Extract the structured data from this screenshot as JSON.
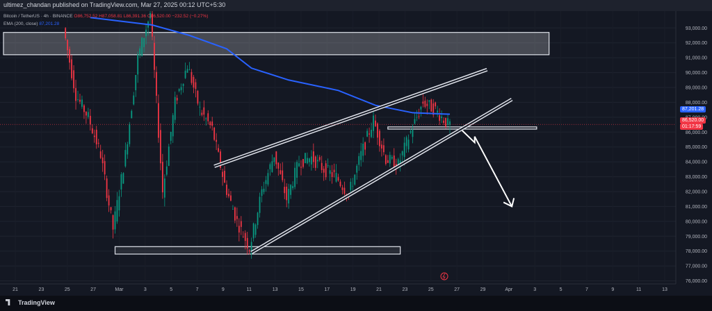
{
  "header": {
    "publish_text": "ultimez_chandan published on TradingView.com, Mar 27, 2025 00:12 UTC+5:30"
  },
  "legend": {
    "symbol": "Bitcoin / TetherUS · 4h · BINANCE",
    "ohlc": "O86,752.52 H87,058.81 L86,391.36 C86,520.00 −232.52 (−0.27%)",
    "ema": "EMA (200, close)",
    "ema_value": "87,201.28"
  },
  "price_tags": {
    "ema": "87,201.28",
    "last": "86,520.00",
    "countdown": "01:17:59"
  },
  "footer": {
    "brand": "TradingView"
  },
  "colors": {
    "up": "#089981",
    "down": "#f23645",
    "ema": "#2962ff",
    "bg": "#141823",
    "zone": "#ffffff"
  },
  "chart_data": {
    "type": "line",
    "y_ticks": [
      "93,000.00",
      "92,000.00",
      "91,000.00",
      "90,000.00",
      "89,000.00",
      "88,000.00",
      "87,000.00",
      "86,000.00",
      "85,000.00",
      "84,000.00",
      "83,000.00",
      "82,000.00",
      "81,000.00",
      "80,000.00",
      "79,000.00",
      "78,000.00",
      "77,000.00",
      "76,000.00"
    ],
    "x_ticks": [
      "21",
      "23",
      "25",
      "27",
      "Mar",
      "3",
      "5",
      "7",
      "9",
      "11",
      "13",
      "15",
      "17",
      "19",
      "21",
      "23",
      "25",
      "27",
      "29",
      "Apr",
      "3",
      "5",
      "7",
      "9",
      "11",
      "13"
    ],
    "ylim": [
      75700,
      93900
    ],
    "x_range": [
      "Feb 19",
      "Apr 14"
    ],
    "price_path": [
      [
        "Feb 19",
        96000
      ],
      [
        "Feb 24",
        93000
      ],
      [
        "Feb 25",
        88500
      ],
      [
        "Feb 26",
        87000
      ],
      [
        "Feb 27",
        84500
      ],
      [
        "Feb 28",
        79500
      ],
      [
        "Mar 1",
        84500
      ],
      [
        "Mar 2",
        91000
      ],
      [
        "Mar 3",
        94000
      ],
      [
        "Mar 4",
        82000
      ],
      [
        "Mar 5",
        88000
      ],
      [
        "Mar 6",
        90500
      ],
      [
        "Mar 7",
        87500
      ],
      [
        "Mar 8",
        86200
      ],
      [
        "Mar 9",
        82500
      ],
      [
        "Mar 10",
        80000
      ],
      [
        "Mar 11",
        78200
      ],
      [
        "Mar 12",
        82000
      ],
      [
        "Mar 13",
        84500
      ],
      [
        "Mar 14",
        81500
      ],
      [
        "Mar 15",
        84000
      ],
      [
        "Mar 16",
        84300
      ],
      [
        "Mar 17",
        83500
      ],
      [
        "Mar 18",
        83000
      ],
      [
        "Mar 19",
        81800
      ],
      [
        "Mar 20",
        84500
      ],
      [
        "Mar 21",
        86800
      ],
      [
        "Mar 22",
        84200
      ],
      [
        "Mar 23",
        83800
      ],
      [
        "Mar 24",
        86000
      ],
      [
        "Mar 25",
        88000
      ],
      [
        "Mar 26",
        87500
      ],
      [
        "Mar 27",
        86520
      ]
    ],
    "ema_200": [
      [
        "Feb 26",
        93700
      ],
      [
        "Mar 3",
        93200
      ],
      [
        "Mar 6",
        92500
      ],
      [
        "Mar 9",
        91600
      ],
      [
        "Mar 11",
        90300
      ],
      [
        "Mar 14",
        89500
      ],
      [
        "Mar 18",
        88800
      ],
      [
        "Mar 21",
        87800
      ],
      [
        "Mar 24",
        87300
      ],
      [
        "Mar 27",
        87201.28
      ]
    ],
    "annotations": {
      "resistance_zone": {
        "from": "Feb 19",
        "to": "Apr 4",
        "y": [
          91200,
          92700
        ]
      },
      "support_zone": {
        "from": "Feb 28",
        "to": "Mar 23",
        "y": [
          77800,
          78300
        ]
      },
      "mid_box": {
        "from": "Mar 22",
        "to": "Apr 3",
        "y": [
          86200,
          86350
        ]
      },
      "channel_upper": [
        [
          "Mar 8",
          83700
        ],
        [
          "Mar 30",
          90200
        ]
      ],
      "channel_lower": [
        [
          "Mar 11",
          77900
        ],
        [
          "Apr 1",
          88200
        ]
      ],
      "projection_arrow": [
        [
          "Mar 28",
          86100
        ],
        [
          "Mar 29",
          85300
        ],
        [
          "Mar 29",
          85700
        ],
        [
          "Apr 1",
          81000
        ]
      ]
    },
    "last_price": 86520.0
  }
}
